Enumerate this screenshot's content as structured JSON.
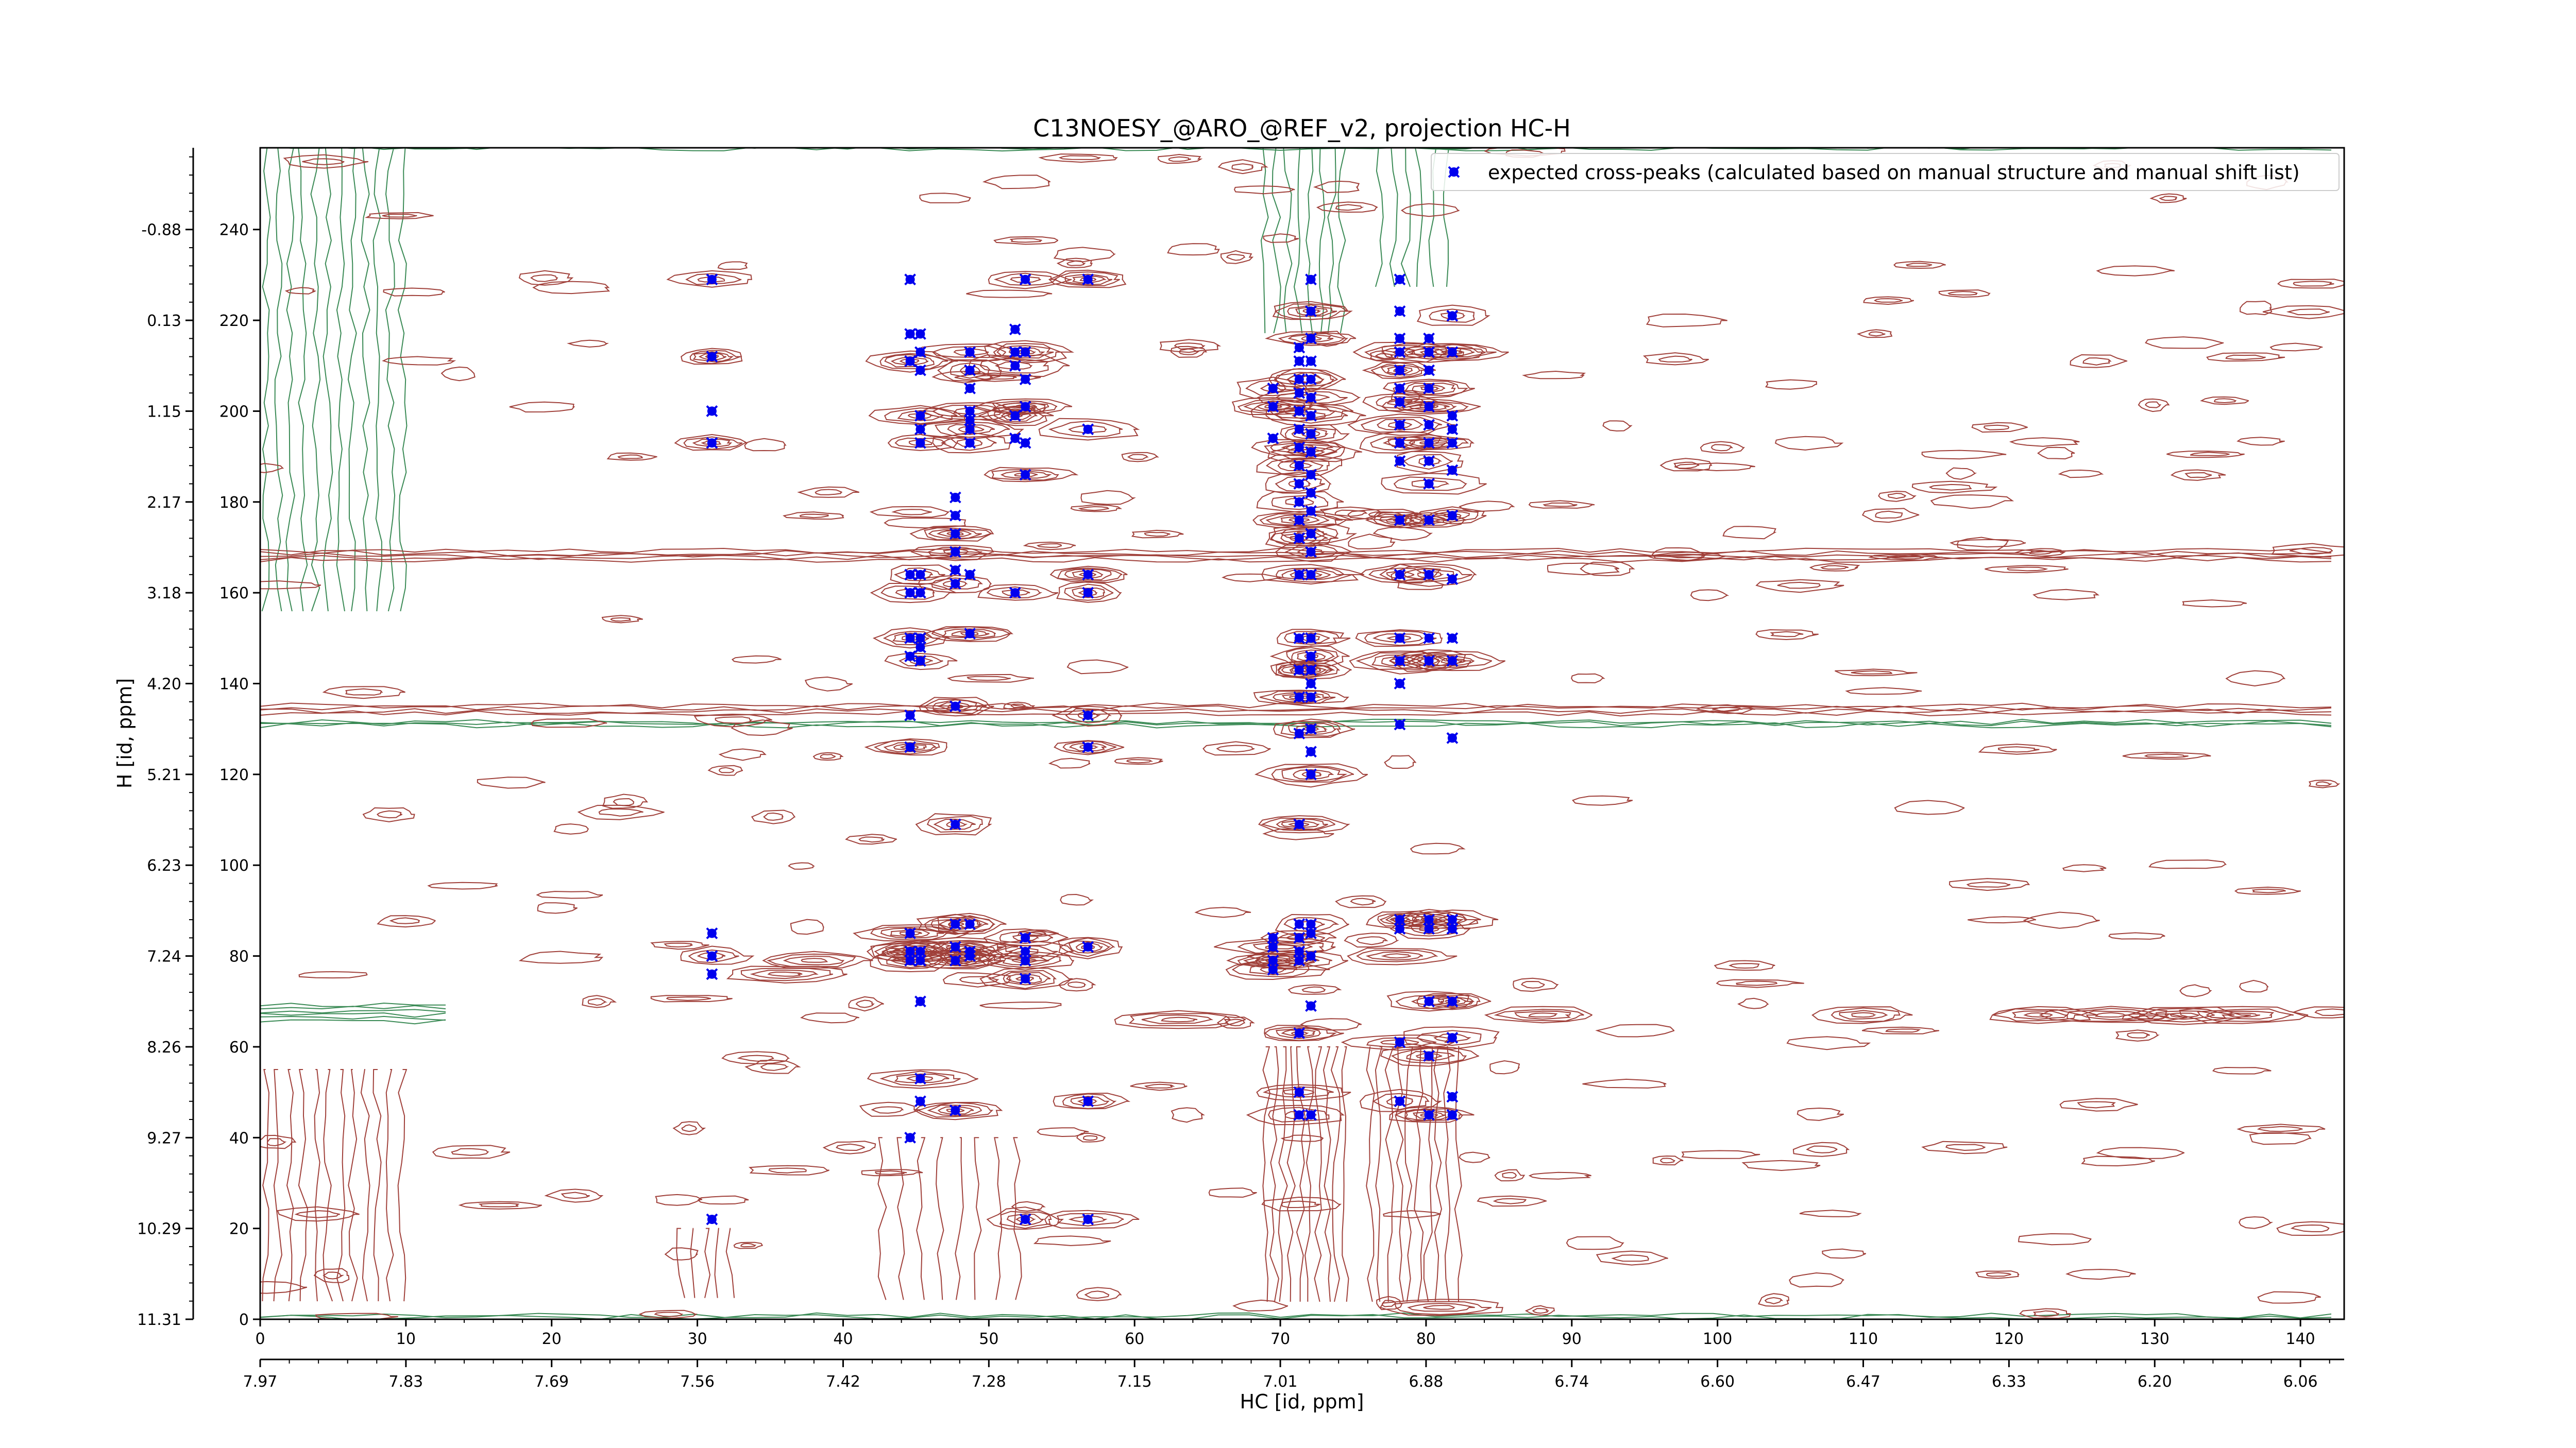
{
  "chart_data": {
    "type": "scatter",
    "title": "C13NOESY_@ARO_@REF_v2, projection HC-H",
    "xlabel": "HC [id, ppm]",
    "ylabel": "H [id, ppm]",
    "x_index_range": [
      0,
      143
    ],
    "y_index_range": [
      0,
      258
    ],
    "x_index_ticks": [
      0,
      10,
      20,
      30,
      40,
      50,
      60,
      70,
      80,
      90,
      100,
      110,
      120,
      130,
      140
    ],
    "x_ppm_ticks": [
      "7.97",
      "7.83",
      "7.69",
      "7.56",
      "7.42",
      "7.28",
      "7.15",
      "7.01",
      "6.88",
      "6.74",
      "6.60",
      "6.47",
      "6.33",
      "6.20",
      "6.06"
    ],
    "y_index_ticks": [
      0,
      20,
      40,
      60,
      80,
      100,
      120,
      140,
      160,
      180,
      200,
      220,
      240
    ],
    "y_ppm_ticks": [
      "11.31",
      "10.29",
      "9.27",
      "8.26",
      "7.24",
      "6.23",
      "5.21",
      "4.20",
      "3.18",
      "2.17",
      "1.15",
      "0.13",
      "-0.88"
    ],
    "legend": {
      "position": "top-right",
      "label": "expected cross-peaks (calculated based on manual structure and manual shift list)",
      "marker_color": "#0000ee"
    },
    "contour_colors": {
      "positive": "#a0403a",
      "negative": "#3a8a55"
    },
    "series": [
      {
        "name": "expected cross-peaks (calculated based on manual structure and manual shift list)",
        "points": [
          [
            31,
            229
          ],
          [
            31,
            212
          ],
          [
            31,
            200
          ],
          [
            31,
            193
          ],
          [
            31,
            85
          ],
          [
            31,
            80
          ],
          [
            31,
            76
          ],
          [
            31,
            22
          ],
          [
            44.6,
            229
          ],
          [
            44.6,
            217
          ],
          [
            44.6,
            211
          ],
          [
            44.6,
            164
          ],
          [
            44.6,
            160
          ],
          [
            44.6,
            150
          ],
          [
            44.6,
            146
          ],
          [
            44.6,
            133
          ],
          [
            44.6,
            126
          ],
          [
            44.6,
            85
          ],
          [
            44.6,
            81
          ],
          [
            44.6,
            79
          ],
          [
            44.6,
            40
          ],
          [
            45.3,
            217
          ],
          [
            45.3,
            213
          ],
          [
            45.3,
            209
          ],
          [
            45.3,
            199
          ],
          [
            45.3,
            196
          ],
          [
            45.3,
            193
          ],
          [
            45.3,
            164
          ],
          [
            45.3,
            160
          ],
          [
            45.3,
            150
          ],
          [
            45.3,
            148
          ],
          [
            45.3,
            145
          ],
          [
            45.3,
            81
          ],
          [
            45.3,
            79
          ],
          [
            45.3,
            70
          ],
          [
            45.3,
            53
          ],
          [
            45.3,
            48
          ],
          [
            47.7,
            181
          ],
          [
            47.7,
            177
          ],
          [
            47.7,
            173
          ],
          [
            47.7,
            169
          ],
          [
            47.7,
            165
          ],
          [
            47.7,
            162
          ],
          [
            47.7,
            135
          ],
          [
            47.7,
            109
          ],
          [
            47.7,
            87
          ],
          [
            47.7,
            82
          ],
          [
            47.7,
            79
          ],
          [
            47.7,
            46
          ],
          [
            48.7,
            213
          ],
          [
            48.7,
            209
          ],
          [
            48.7,
            205
          ],
          [
            48.7,
            200
          ],
          [
            48.7,
            198
          ],
          [
            48.7,
            196
          ],
          [
            48.7,
            193
          ],
          [
            48.7,
            164
          ],
          [
            48.7,
            151
          ],
          [
            48.7,
            87
          ],
          [
            48.7,
            81
          ],
          [
            48.7,
            80
          ],
          [
            51.8,
            218
          ],
          [
            51.8,
            213
          ],
          [
            51.8,
            210
          ],
          [
            51.8,
            199
          ],
          [
            51.8,
            194
          ],
          [
            51.8,
            160
          ],
          [
            52.5,
            229
          ],
          [
            52.5,
            213
          ],
          [
            52.5,
            207
          ],
          [
            52.5,
            201
          ],
          [
            52.5,
            193
          ],
          [
            52.5,
            186
          ],
          [
            52.5,
            84
          ],
          [
            52.5,
            81
          ],
          [
            52.5,
            79
          ],
          [
            52.5,
            75
          ],
          [
            52.5,
            22
          ],
          [
            56.8,
            229
          ],
          [
            56.8,
            196
          ],
          [
            56.8,
            164
          ],
          [
            56.8,
            160
          ],
          [
            56.8,
            133
          ],
          [
            56.8,
            126
          ],
          [
            56.8,
            82
          ],
          [
            56.8,
            48
          ],
          [
            56.8,
            22
          ],
          [
            69.5,
            205
          ],
          [
            69.5,
            201
          ],
          [
            69.5,
            194
          ],
          [
            69.5,
            84
          ],
          [
            69.5,
            82
          ],
          [
            69.5,
            79
          ],
          [
            69.5,
            77
          ],
          [
            71.3,
            214
          ],
          [
            71.3,
            211
          ],
          [
            71.3,
            207
          ],
          [
            71.3,
            204
          ],
          [
            71.3,
            200
          ],
          [
            71.3,
            196
          ],
          [
            71.3,
            192
          ],
          [
            71.3,
            188
          ],
          [
            71.3,
            184
          ],
          [
            71.3,
            180
          ],
          [
            71.3,
            176
          ],
          [
            71.3,
            172
          ],
          [
            71.3,
            164
          ],
          [
            71.3,
            150
          ],
          [
            71.3,
            143
          ],
          [
            71.3,
            137
          ],
          [
            71.3,
            129
          ],
          [
            71.3,
            109
          ],
          [
            71.3,
            87
          ],
          [
            71.3,
            84
          ],
          [
            71.3,
            81
          ],
          [
            71.3,
            79
          ],
          [
            71.3,
            63
          ],
          [
            71.3,
            50
          ],
          [
            71.3,
            45
          ],
          [
            72.1,
            229
          ],
          [
            72.1,
            222
          ],
          [
            72.1,
            216
          ],
          [
            72.1,
            211
          ],
          [
            72.1,
            207
          ],
          [
            72.1,
            203
          ],
          [
            72.1,
            199
          ],
          [
            72.1,
            195
          ],
          [
            72.1,
            191
          ],
          [
            72.1,
            186
          ],
          [
            72.1,
            182
          ],
          [
            72.1,
            178
          ],
          [
            72.1,
            173
          ],
          [
            72.1,
            169
          ],
          [
            72.1,
            164
          ],
          [
            72.1,
            150
          ],
          [
            72.1,
            146
          ],
          [
            72.1,
            143
          ],
          [
            72.1,
            140
          ],
          [
            72.1,
            137
          ],
          [
            72.1,
            130
          ],
          [
            72.1,
            125
          ],
          [
            72.1,
            120
          ],
          [
            72.1,
            87
          ],
          [
            72.1,
            85
          ],
          [
            72.1,
            80
          ],
          [
            72.1,
            69
          ],
          [
            72.1,
            45
          ],
          [
            78.2,
            229
          ],
          [
            78.2,
            222
          ],
          [
            78.2,
            216
          ],
          [
            78.2,
            213
          ],
          [
            78.2,
            209
          ],
          [
            78.2,
            205
          ],
          [
            78.2,
            202
          ],
          [
            78.2,
            197
          ],
          [
            78.2,
            193
          ],
          [
            78.2,
            189
          ],
          [
            78.2,
            176
          ],
          [
            78.2,
            164
          ],
          [
            78.2,
            150
          ],
          [
            78.2,
            145
          ],
          [
            78.2,
            140
          ],
          [
            78.2,
            131
          ],
          [
            78.2,
            88
          ],
          [
            78.2,
            86
          ],
          [
            78.2,
            61
          ],
          [
            78.2,
            48
          ],
          [
            80.2,
            216
          ],
          [
            80.2,
            213
          ],
          [
            80.2,
            209
          ],
          [
            80.2,
            205
          ],
          [
            80.2,
            201
          ],
          [
            80.2,
            197
          ],
          [
            80.2,
            193
          ],
          [
            80.2,
            189
          ],
          [
            80.2,
            184
          ],
          [
            80.2,
            176
          ],
          [
            80.2,
            164
          ],
          [
            80.2,
            150
          ],
          [
            80.2,
            145
          ],
          [
            80.2,
            88
          ],
          [
            80.2,
            86
          ],
          [
            80.2,
            70
          ],
          [
            80.2,
            58
          ],
          [
            80.2,
            45
          ],
          [
            81.8,
            221
          ],
          [
            81.8,
            213
          ],
          [
            81.8,
            199
          ],
          [
            81.8,
            196
          ],
          [
            81.8,
            193
          ],
          [
            81.8,
            187
          ],
          [
            81.8,
            177
          ],
          [
            81.8,
            163
          ],
          [
            81.8,
            150
          ],
          [
            81.8,
            145
          ],
          [
            81.8,
            128
          ],
          [
            81.8,
            88
          ],
          [
            81.8,
            86
          ],
          [
            81.8,
            70
          ],
          [
            81.8,
            62
          ],
          [
            81.8,
            49
          ],
          [
            81.8,
            45
          ]
        ]
      }
    ]
  }
}
